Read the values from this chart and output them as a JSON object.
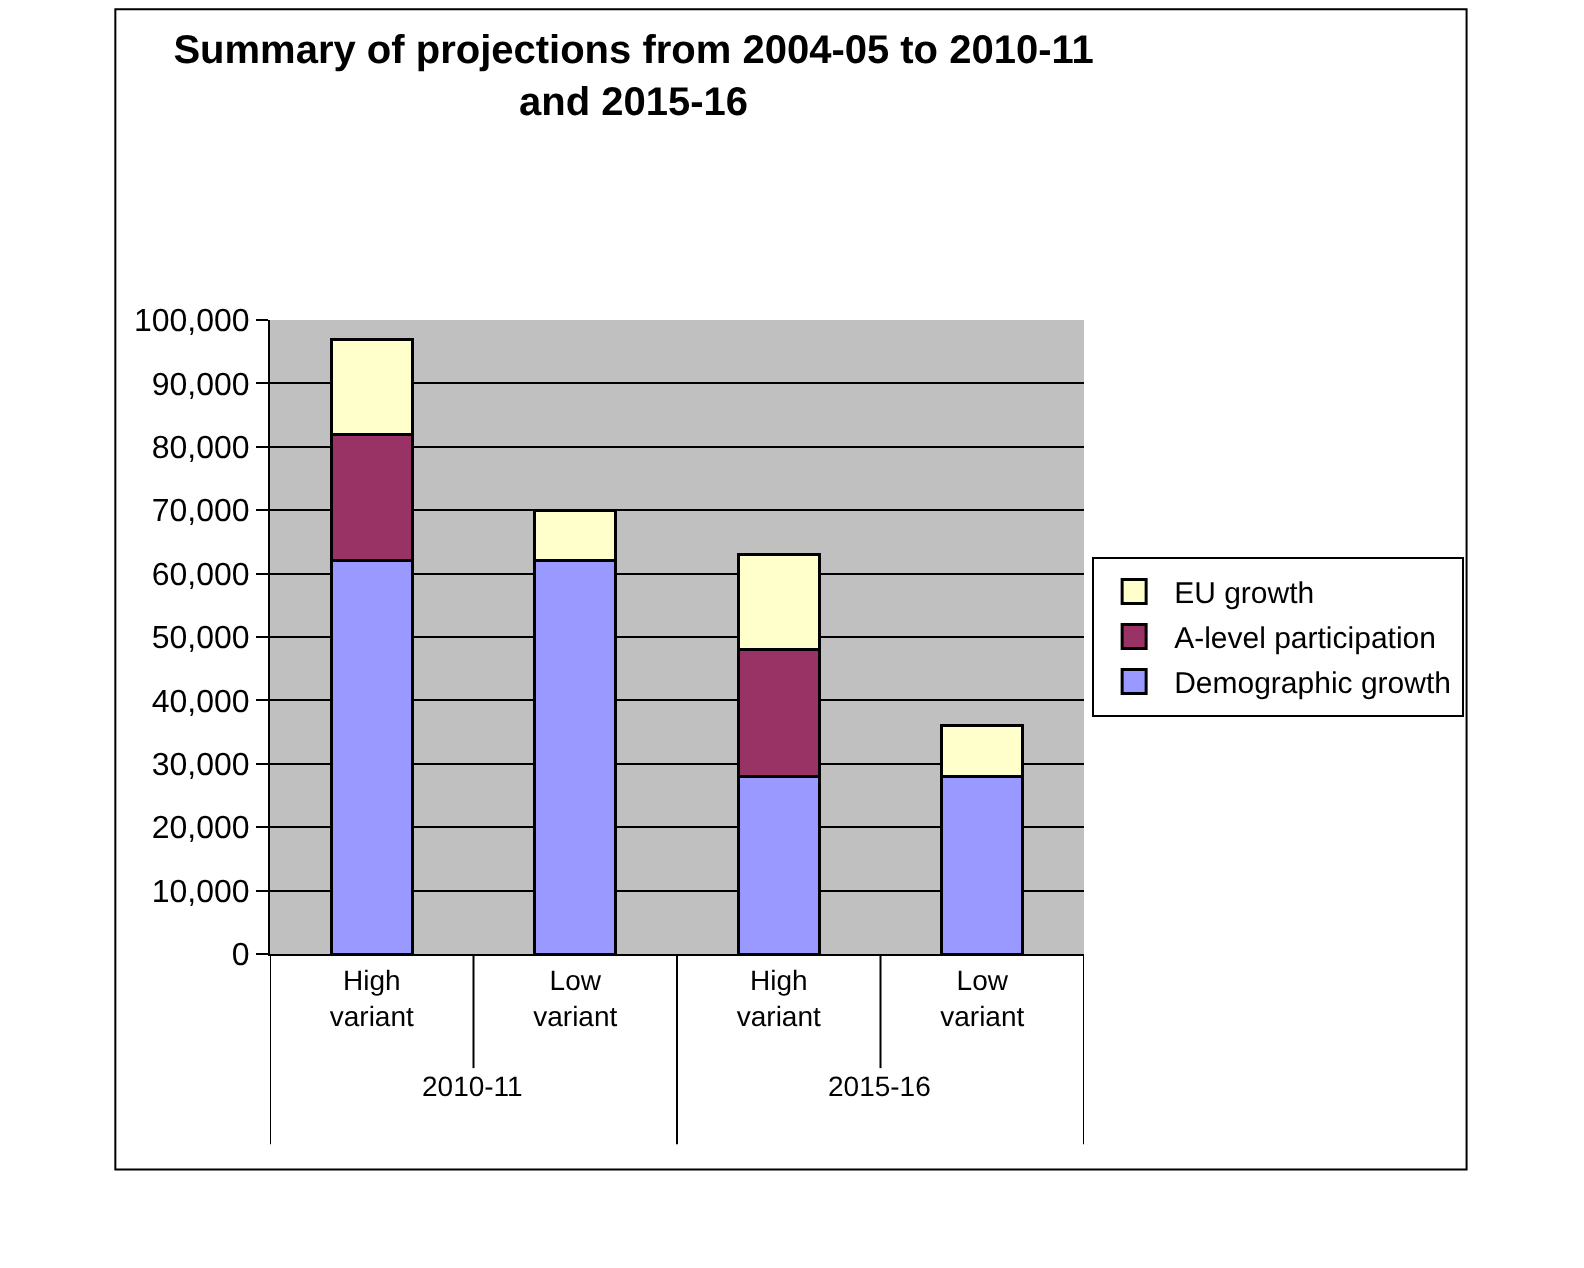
{
  "chart_data": {
    "type": "bar",
    "title": "Summary of projections from 2004-05 to 2010-11 and 2015-16",
    "categories": [
      "High variant",
      "Low variant",
      "High variant",
      "Low variant"
    ],
    "stacked": true,
    "series": [
      {
        "name": "Demographic growth",
        "color": "#9999ff",
        "values": [
          62000,
          62000,
          28000,
          28000
        ]
      },
      {
        "name": "A-level participation",
        "color": "#993366",
        "values": [
          20000,
          null,
          20000,
          null
        ]
      },
      {
        "name": "EU growth",
        "color": "#ffffcc",
        "values": [
          15000,
          8000,
          15000,
          8000
        ]
      }
    ],
    "annotations": [
      "2010-11",
      "2015-16"
    ],
    "ylim": [
      0,
      100000
    ],
    "yticks": [
      {
        "value": 0,
        "label": "0"
      },
      {
        "value": 10000,
        "label": "10,000"
      },
      {
        "value": 20000,
        "label": "20,000"
      },
      {
        "value": 30000,
        "label": "30,000"
      },
      {
        "value": 40000,
        "label": "40,000"
      },
      {
        "value": 50000,
        "label": "50,000"
      },
      {
        "value": 60000,
        "label": "60,000"
      },
      {
        "value": 70000,
        "label": "70,000"
      },
      {
        "value": 80000,
        "label": "80,000"
      },
      {
        "value": 90000,
        "label": "90,000"
      },
      {
        "value": 100000,
        "label": "100,000"
      }
    ],
    "grid": "y",
    "legend": "right"
  }
}
